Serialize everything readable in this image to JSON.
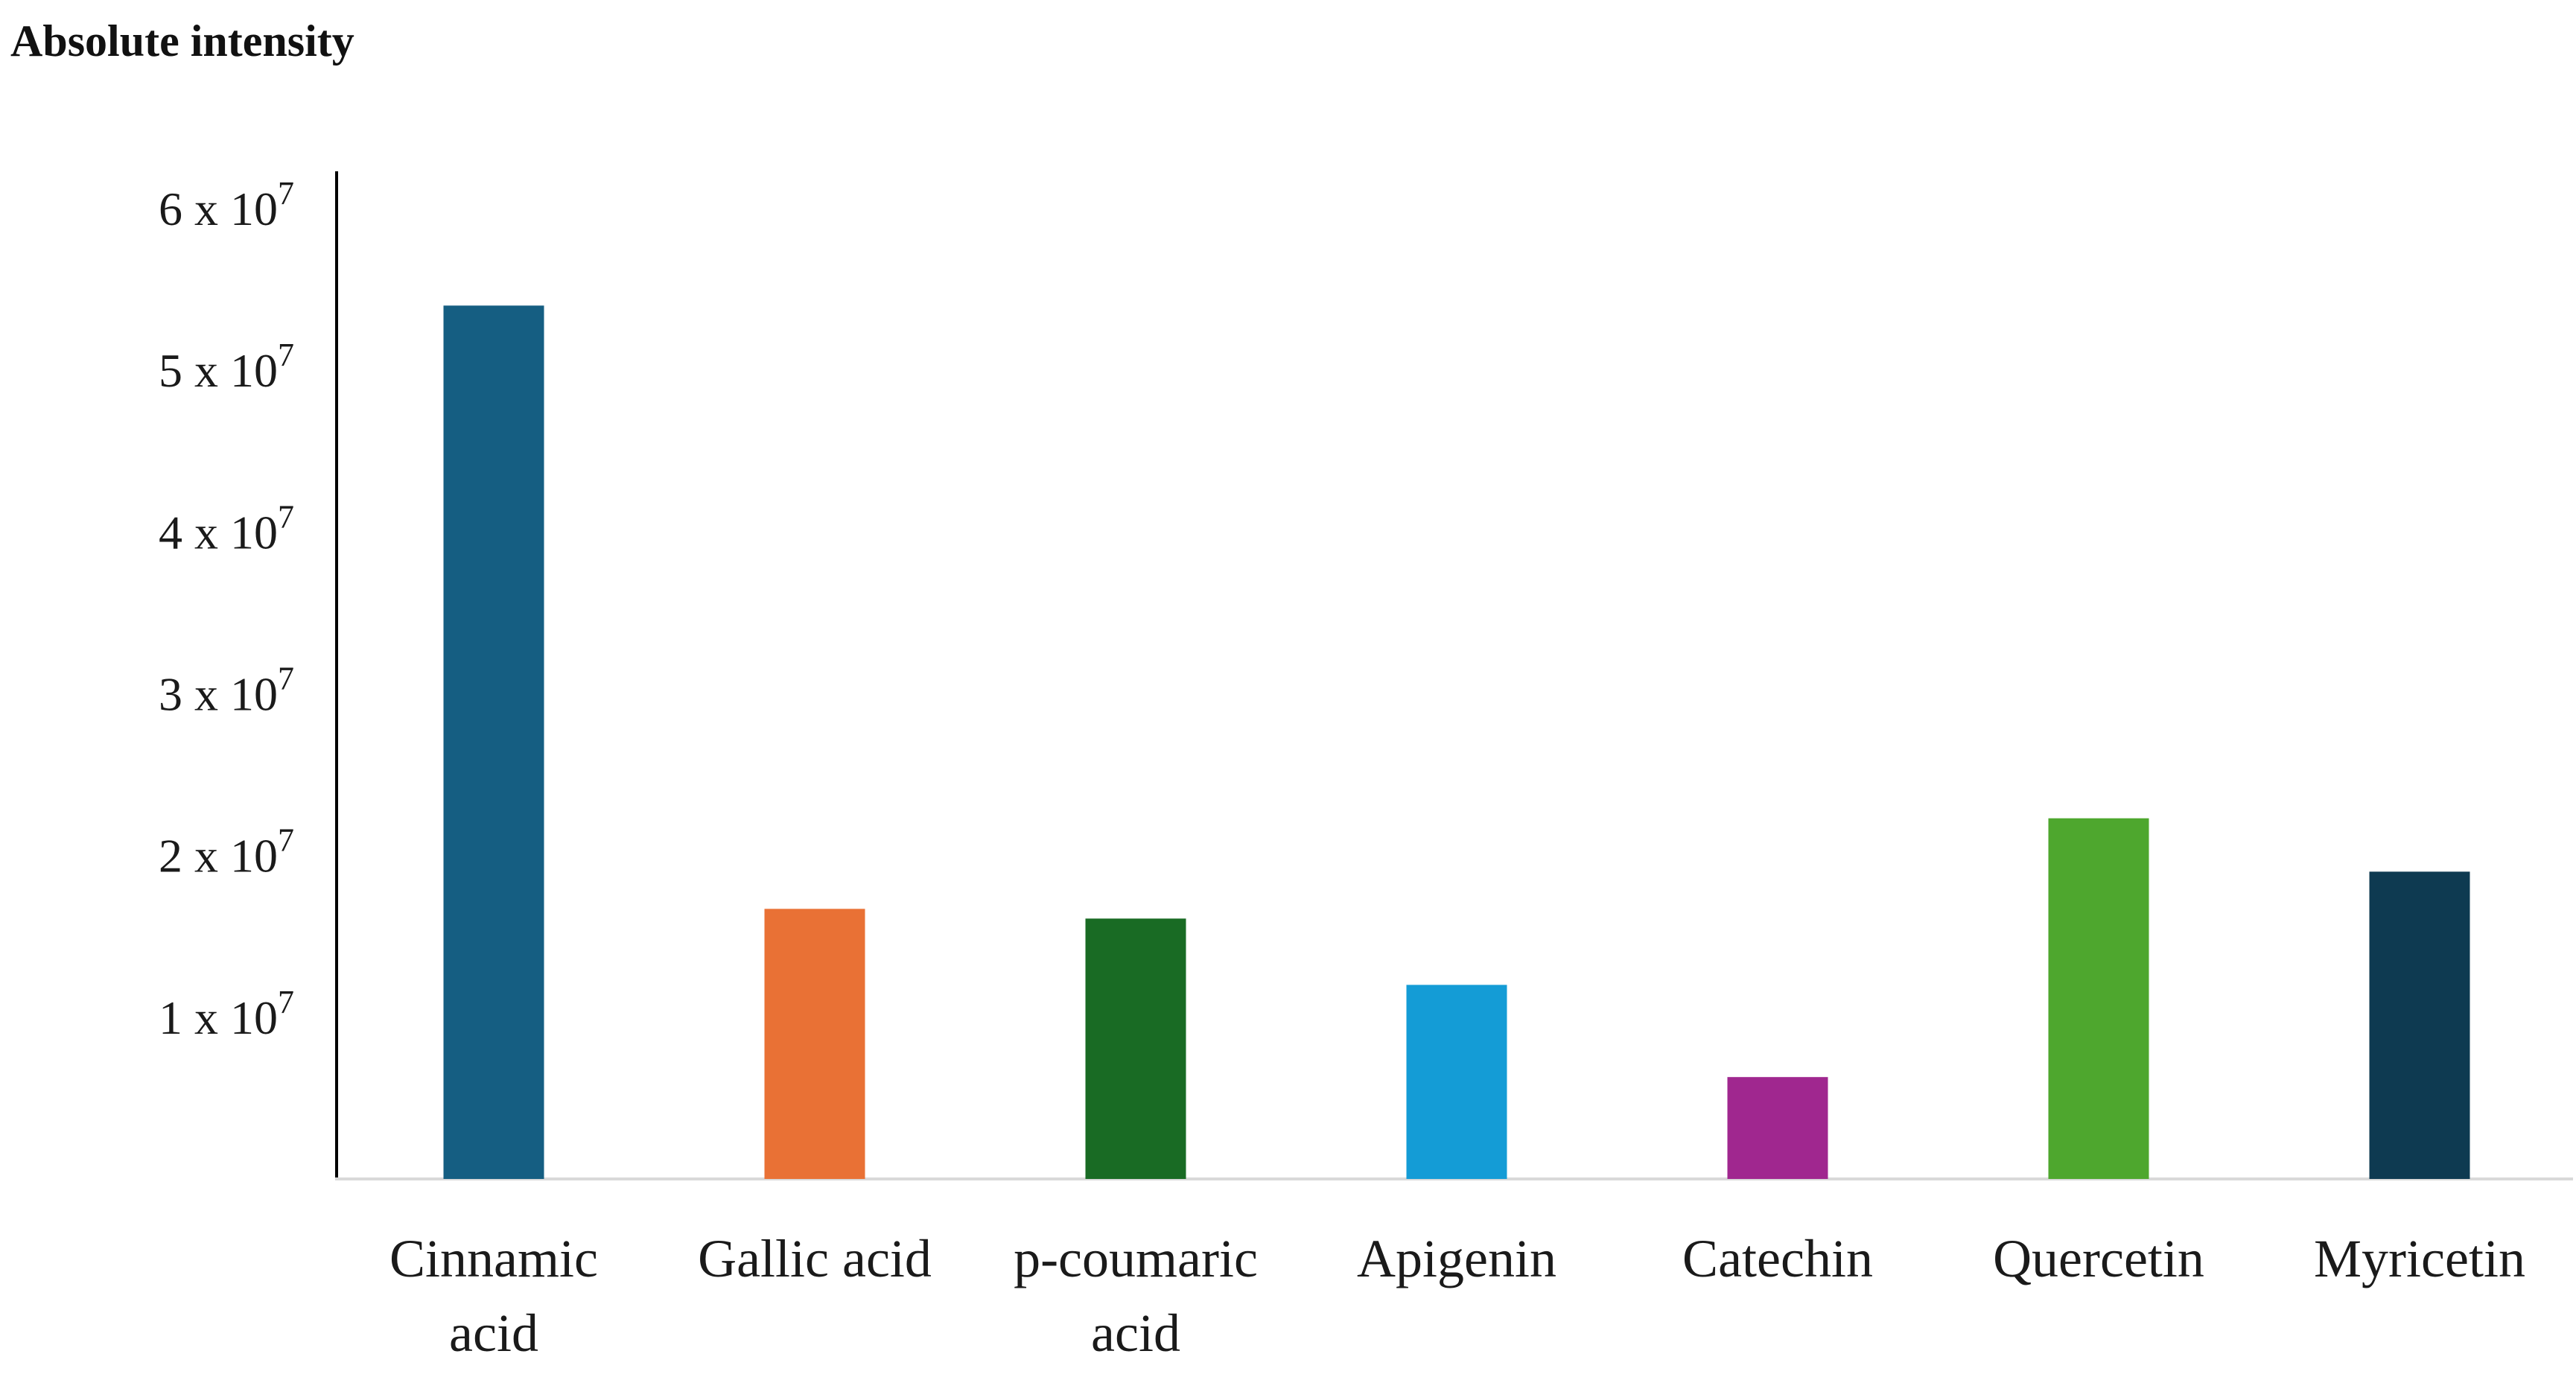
{
  "chart_data": {
    "type": "bar",
    "title": "Absolute intensity",
    "xlabel": "",
    "ylabel": "",
    "ylim": [
      0,
      60000000
    ],
    "grid": false,
    "legend": "none",
    "categories": [
      [
        "Cinnamic",
        "acid"
      ],
      [
        "Gallic acid"
      ],
      [
        "p-coumaric",
        "acid"
      ],
      [
        "Apigenin"
      ],
      [
        "Catechin"
      ],
      [
        "Quercetin"
      ],
      [
        "Myricetin"
      ]
    ],
    "values": [
      54000000,
      16700000,
      16100000,
      12000000,
      6300000,
      22300000,
      19000000
    ],
    "colors": [
      "#155E82",
      "#E97135",
      "#196B24",
      "#149CD6",
      "#A0278F",
      "#4EA72E",
      "#0E3A51"
    ],
    "yticks": [
      {
        "value": 10000000,
        "mantissa": "1",
        "text": " x 10",
        "exp": "7"
      },
      {
        "value": 20000000,
        "mantissa": "2",
        "text": " x 10",
        "exp": "7"
      },
      {
        "value": 30000000,
        "mantissa": "3",
        "text": " x 10",
        "exp": "7"
      },
      {
        "value": 40000000,
        "mantissa": "4",
        "text": " x 10",
        "exp": "7"
      },
      {
        "value": 50000000,
        "mantissa": "5",
        "text": " x 10",
        "exp": "7"
      },
      {
        "value": 60000000,
        "mantissa": "6",
        "text": " x 10",
        "exp": "7"
      }
    ]
  }
}
